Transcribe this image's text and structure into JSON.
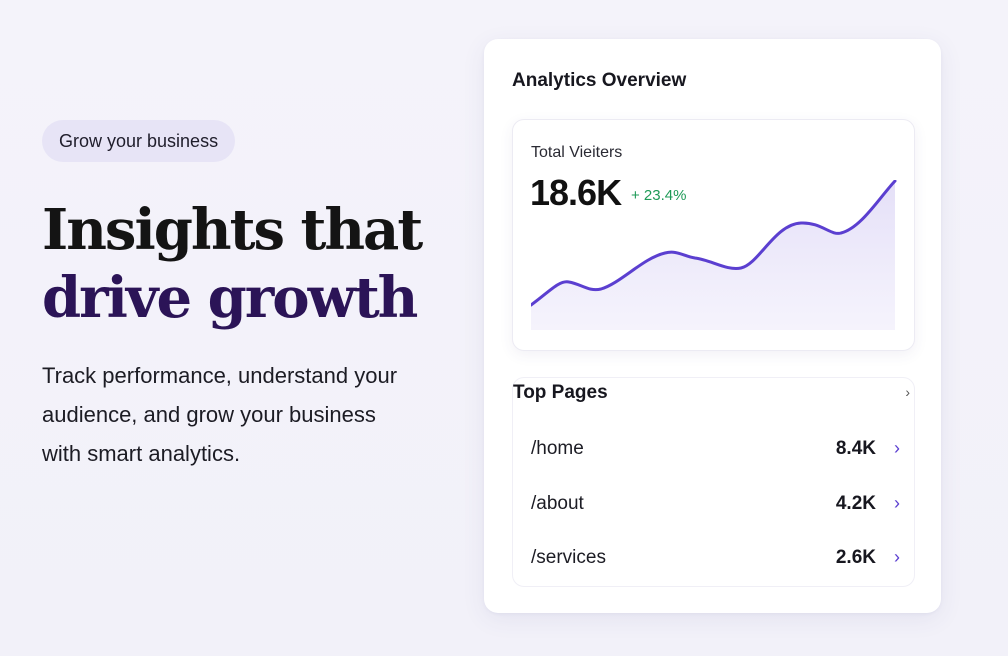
{
  "hero": {
    "badge": "Grow your business",
    "headline_line1": "Insights that",
    "headline_line2": "drive growth",
    "description": "Track performance, understand your audience, and grow your business with smart analytics."
  },
  "card": {
    "title": "Analytics Overview",
    "visitors": {
      "label": "Total Vieiters",
      "value": "18.6K",
      "change": "+ 23.4%"
    },
    "top_pages": {
      "title": "Top Pages",
      "rows": [
        {
          "path": "/home",
          "value": "8.4K"
        },
        {
          "path": "/about",
          "value": "4.2K"
        },
        {
          "path": "/services",
          "value": "2.6K"
        }
      ]
    }
  },
  "colors": {
    "accent": "#5b3fd0",
    "positive": "#1e9a57",
    "headline_dark": "#141414",
    "headline_purple": "#2b1457"
  },
  "icons": {
    "chevron": "chevron-right-icon"
  }
}
